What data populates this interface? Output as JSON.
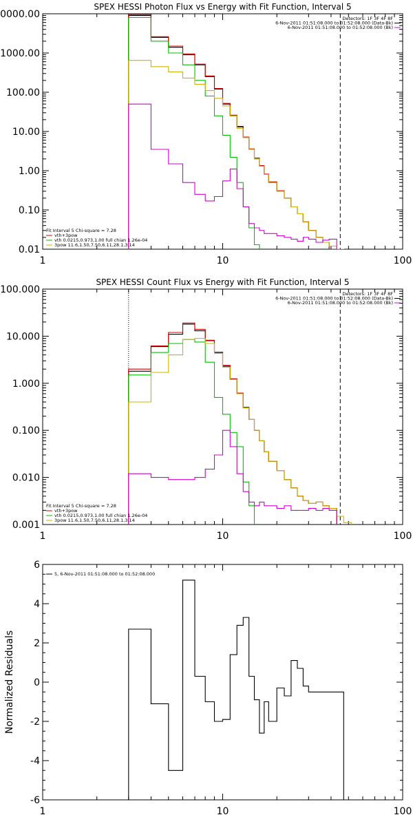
{
  "chart_data": [
    {
      "type": "line",
      "title": "SPEX HESSI Photon Flux vs Energy with Fit Function, Interval 5",
      "xscale": "log",
      "yscale": "log",
      "xlim": [
        1,
        100
      ],
      "ylim": [
        0.01,
        10000
      ],
      "xticks": [
        "1",
        "10",
        "100"
      ],
      "yticks": [
        {
          "v": 10000,
          "label": "10000.00"
        },
        {
          "v": 1000,
          "label": "1000.00"
        },
        {
          "v": 100,
          "label": "100.00"
        },
        {
          "v": 10,
          "label": "10.00"
        },
        {
          "v": 1,
          "label": "1.00"
        },
        {
          "v": 0.1,
          "label": "0.10"
        },
        {
          "v": 0.01,
          "label": "0.01"
        }
      ],
      "vlines": [
        {
          "x": 3,
          "style": "dotted",
          "color": "#000000"
        },
        {
          "x": 45,
          "style": "dashed",
          "color": "#000000"
        }
      ],
      "legend_right": [
        {
          "text": "Detectors: 1F 3F 4F 8F",
          "color": "#000000"
        },
        {
          "text": "6-Nov-2011 01:51:08.000 to 01:52:08.000 (Data-Bk)",
          "color": "#000000"
        },
        {
          "text": "6-Nov-2011 01:51:08.000 to 01:52:08.000 (Bk)",
          "color": "#d000d0"
        }
      ],
      "legend_left": [
        {
          "text": "Fit Interval 5   Chi-square = 7.28",
          "color": "#000000"
        },
        {
          "text": "vth+3pow",
          "color": "#d00000"
        },
        {
          "text": "vth 0.0215,0.973,1.00  full chian 1.26e-04",
          "color": "#00c000"
        },
        {
          "text": "3pow 11.6,1.50,7.50,6.11,28.1,3.14",
          "color": "#d0b000"
        }
      ],
      "edges": [
        3,
        4,
        5,
        6,
        7,
        8,
        9,
        10,
        11,
        12,
        13,
        14,
        15,
        16,
        17,
        18,
        20,
        22,
        24,
        26,
        28,
        30,
        33,
        36,
        39,
        43,
        47,
        52
      ],
      "series": [
        {
          "color": "#000000",
          "values": [
            9000,
            2500,
            1400,
            900,
            500,
            250,
            120,
            50,
            25,
            13,
            7,
            3.5,
            2.0,
            1.3,
            0.8,
            0.5,
            0.3,
            0.2,
            0.12,
            0.08,
            0.05,
            0.03,
            0.02,
            0.015,
            0.01,
            0.01,
            null
          ]
        },
        {
          "color": "#d00000",
          "values": [
            9500,
            2600,
            1500,
            950,
            520,
            260,
            125,
            52,
            26,
            13.5,
            7.2,
            3.6,
            2.1,
            1.35,
            0.82,
            0.52,
            0.31,
            0.2,
            0.12,
            0.08,
            0.05,
            0.03,
            0.02,
            0.015,
            0.01,
            null,
            null
          ]
        },
        {
          "color": "#00c000",
          "values": [
            8000,
            2000,
            1000,
            500,
            200,
            80,
            25,
            8,
            2.2,
            0.5,
            0.12,
            0.035,
            0.013,
            0.005,
            null,
            null,
            null,
            null,
            null,
            null,
            null,
            null,
            null,
            null,
            null,
            null,
            null
          ]
        },
        {
          "color": "#d0b000",
          "values": [
            650,
            450,
            330,
            230,
            160,
            110,
            70,
            45,
            25,
            12,
            7,
            3.5,
            2.0,
            1.3,
            0.8,
            0.5,
            0.3,
            0.2,
            0.12,
            0.08,
            0.05,
            0.03,
            0.02,
            0.015,
            0.012,
            0.01,
            0.007
          ]
        },
        {
          "color": "#d000d0",
          "values": [
            50,
            3.5,
            1.5,
            0.5,
            0.25,
            0.17,
            0.22,
            0.55,
            1.1,
            0.35,
            0.12,
            0.045,
            0.035,
            0.03,
            0.025,
            0.025,
            0.022,
            0.02,
            0.018,
            0.016,
            0.02,
            0.018,
            0.015,
            0.017,
            0.018,
            null,
            null
          ]
        }
      ]
    },
    {
      "type": "line",
      "title": "SPEX HESSI Count Flux vs Energy with Fit Function, Interval 5",
      "xscale": "log",
      "yscale": "log",
      "xlim": [
        1,
        100
      ],
      "ylim": [
        0.001,
        100
      ],
      "xticks": [
        "1",
        "10",
        "100"
      ],
      "yticks": [
        {
          "v": 100,
          "label": "100.000"
        },
        {
          "v": 10,
          "label": "10.000"
        },
        {
          "v": 1,
          "label": "1.000"
        },
        {
          "v": 0.1,
          "label": "0.100"
        },
        {
          "v": 0.01,
          "label": "0.010"
        },
        {
          "v": 0.001,
          "label": "0.001"
        }
      ],
      "vlines": [
        {
          "x": 3,
          "style": "dotted",
          "color": "#000000"
        },
        {
          "x": 45,
          "style": "dashed",
          "color": "#000000"
        }
      ],
      "legend_right": [
        {
          "text": "Detectors: 1F 3F 4F 8F",
          "color": "#000000"
        },
        {
          "text": "6-Nov-2011 01:51:08.000 to 01:52:08.000 (Data-Bk)",
          "color": "#000000"
        },
        {
          "text": "6-Nov-2011 01:51:08.000 to 01:52:08.000 (Bk)",
          "color": "#d000d0"
        }
      ],
      "legend_left": [
        {
          "text": "Fit Interval 5   Chi-square = 7.28",
          "color": "#000000"
        },
        {
          "text": "vth+3pow",
          "color": "#d00000"
        },
        {
          "text": "vth 0.0215,0.973,1.00  full chian 1.26e-04",
          "color": "#00c000"
        },
        {
          "text": "3pow 11.6,1.50,7.50,6.11,28.1,3.14",
          "color": "#d0b000"
        }
      ],
      "edges": [
        3,
        4,
        5,
        6,
        7,
        8,
        9,
        10,
        11,
        12,
        13,
        14,
        15,
        16,
        17,
        18,
        20,
        22,
        24,
        26,
        28,
        30,
        33,
        36,
        39,
        43,
        47,
        52,
        58
      ],
      "series": [
        {
          "color": "#000000",
          "values": [
            1.8,
            6.0,
            11.0,
            18.0,
            13.0,
            8.0,
            4.5,
            2.3,
            1.2,
            0.6,
            0.3,
            0.17,
            0.1,
            0.06,
            0.035,
            0.022,
            0.014,
            0.009,
            0.006,
            0.004,
            0.0032,
            0.0028,
            0.003,
            0.0025,
            0.0022,
            null,
            null,
            null
          ]
        },
        {
          "color": "#d00000",
          "values": [
            2.0,
            6.2,
            12.0,
            19.0,
            14.0,
            8.2,
            4.6,
            2.4,
            1.25,
            0.62,
            0.31,
            0.17,
            0.1,
            0.06,
            0.035,
            0.022,
            0.014,
            0.009,
            0.006,
            0.004,
            0.0032,
            0.0028,
            0.003,
            0.0025,
            0.0022,
            null,
            null,
            null
          ]
        },
        {
          "color": "#00c000",
          "values": [
            1.5,
            4.5,
            7.0,
            8.5,
            7.5,
            2.8,
            0.5,
            0.22,
            0.09,
            0.045,
            0.008,
            0.0025,
            0.0008,
            null,
            null,
            null,
            null,
            null,
            null,
            null,
            null,
            null,
            null,
            null,
            null,
            null,
            null,
            null
          ]
        },
        {
          "color": "#d0b000",
          "values": [
            0.4,
            1.7,
            4.0,
            8.5,
            9.0,
            7.0,
            4.3,
            2.2,
            1.2,
            0.6,
            0.3,
            0.17,
            0.1,
            0.06,
            0.035,
            0.022,
            0.014,
            0.009,
            0.006,
            0.004,
            0.0032,
            0.0028,
            0.003,
            0.0025,
            0.0022,
            0.0015,
            0.0011,
            0.0008
          ]
        },
        {
          "color": "#d000d0",
          "values": [
            0.012,
            0.01,
            0.009,
            0.009,
            0.01,
            0.015,
            0.03,
            0.1,
            0.045,
            0.012,
            0.005,
            0.003,
            0.0025,
            0.003,
            0.0025,
            0.0025,
            0.0022,
            0.0025,
            0.002,
            0.002,
            0.002,
            0.0022,
            0.002,
            0.0022,
            0.002,
            null,
            null,
            null
          ]
        }
      ]
    },
    {
      "type": "line",
      "title": "",
      "xscale": "log",
      "yscale": "linear",
      "xlim": [
        1,
        100
      ],
      "ylim": [
        -6,
        6
      ],
      "ylabel": "Normalized Residuals",
      "xticks": [
        "1",
        "10",
        "100"
      ],
      "yticks": [
        {
          "v": 6,
          "label": "6"
        },
        {
          "v": 4,
          "label": "4"
        },
        {
          "v": 2,
          "label": "2"
        },
        {
          "v": 0,
          "label": "0"
        },
        {
          "v": -2,
          "label": "-2"
        },
        {
          "v": -4,
          "label": "-4"
        },
        {
          "v": -6,
          "label": "-6"
        }
      ],
      "legend_left": [
        {
          "text": "5, 6-Nov-2011 01:51:08.000 to 01:52:08.000",
          "color": "#000000"
        }
      ],
      "edges": [
        3,
        4,
        5,
        6,
        7,
        8,
        9,
        10,
        11,
        12,
        13,
        14,
        15,
        16,
        17,
        18,
        20,
        22,
        24,
        26,
        28,
        30,
        33,
        36,
        39,
        43,
        47
      ],
      "series": [
        {
          "color": "#000000",
          "values": [
            2.7,
            -1.1,
            -4.5,
            5.2,
            0.3,
            -1.0,
            -2.0,
            -1.9,
            1.4,
            2.9,
            3.3,
            0.3,
            -0.9,
            -2.6,
            -1.0,
            -2.0,
            -0.3,
            -0.7,
            1.1,
            0.7,
            -0.2,
            -0.5,
            -0.5,
            -0.5,
            -0.5,
            -0.5
          ]
        }
      ]
    }
  ]
}
